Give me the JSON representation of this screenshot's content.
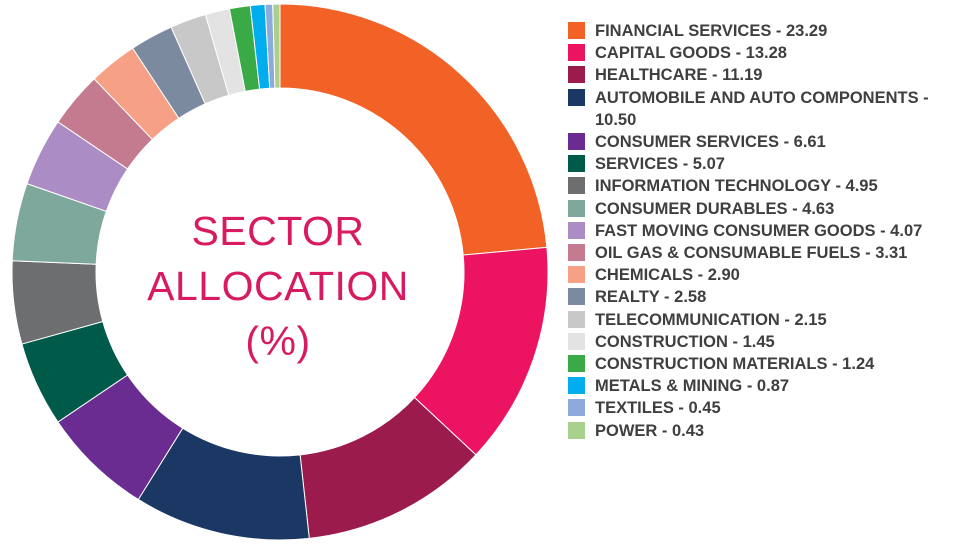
{
  "chart_data": {
    "type": "pie",
    "title_lines": [
      "SECTOR",
      "ALLOCATION",
      "(%)"
    ],
    "legend_position": "right",
    "slices": [
      {
        "label": "FINANCIAL SERVICES - 23.29",
        "value": 23.29,
        "color": "#f26125"
      },
      {
        "label": "CAPITAL GOODS - 13.28",
        "value": 13.28,
        "color": "#ec1461"
      },
      {
        "label": "HEALTHCARE - 11.19",
        "value": 11.19,
        "color": "#9b1b4d"
      },
      {
        "label": "AUTOMOBILE AND AUTO COMPONENTS - 10.50",
        "value": 10.5,
        "color": "#1b3764"
      },
      {
        "label": "CONSUMER SERVICES - 6.61",
        "value": 6.61,
        "color": "#6a2c91"
      },
      {
        "label": "SERVICES - 5.07",
        "value": 5.07,
        "color": "#005a4a"
      },
      {
        "label": "INFORMATION TECHNOLOGY - 4.95",
        "value": 4.95,
        "color": "#6d6e70"
      },
      {
        "label": "CONSUMER DURABLES - 4.63",
        "value": 4.63,
        "color": "#7fa89c"
      },
      {
        "label": "FAST MOVING CONSUMER GOODS - 4.07",
        "value": 4.07,
        "color": "#ab8cc4"
      },
      {
        "label": "OIL GAS & CONSUMABLE FUELS - 3.31",
        "value": 3.31,
        "color": "#c47a8f"
      },
      {
        "label": "CHEMICALS - 2.90",
        "value": 2.9,
        "color": "#f6a085"
      },
      {
        "label": "REALTY - 2.58",
        "value": 2.58,
        "color": "#7b8a9f"
      },
      {
        "label": "TELECOMMUNICATION - 2.15",
        "value": 2.15,
        "color": "#c8c8c8"
      },
      {
        "label": "CONSTRUCTION - 1.45",
        "value": 1.45,
        "color": "#e3e3e3"
      },
      {
        "label": "CONSTRUCTION MATERIALS - 1.24",
        "value": 1.24,
        "color": "#3aaa47"
      },
      {
        "label": "METALS & MINING - 0.87",
        "value": 0.87,
        "color": "#00aeef"
      },
      {
        "label": "TEXTILES - 0.45",
        "value": 0.45,
        "color": "#8ea9db"
      },
      {
        "label": "POWER - 0.43",
        "value": 0.43,
        "color": "#a8d18d"
      }
    ]
  }
}
